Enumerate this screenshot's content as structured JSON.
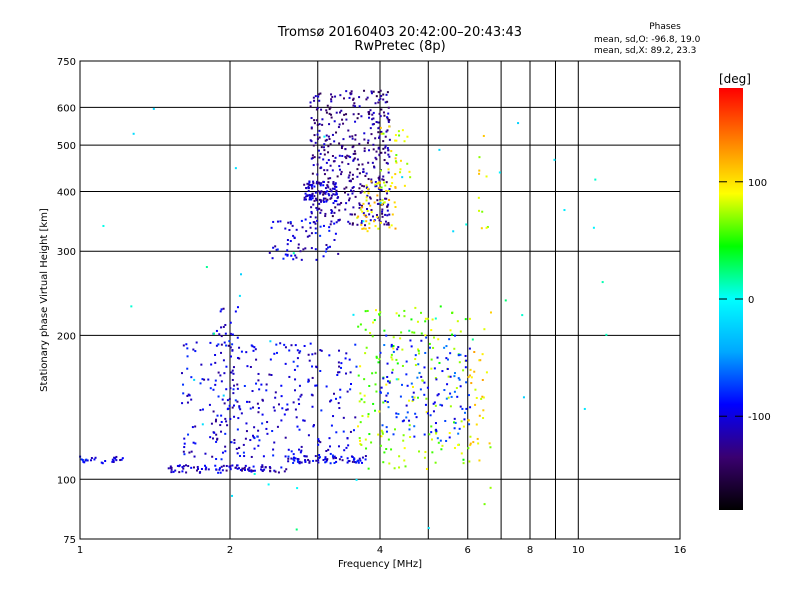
{
  "chart_data": {
    "type": "scatter",
    "title": "Tromsø 20160403 20:42:00–20:43:43",
    "subtitle": "RwPretec (8p)",
    "stats": {
      "header": "Phases",
      "line1": "mean, sd,O:  -96.8, 19.0",
      "line2": "mean, sd,X:  89.2, 23.3"
    },
    "xlabel": "Frequency [MHz]",
    "ylabel": "Stationary phase Virtual Height [km]",
    "xscale": "log",
    "yscale": "log",
    "xlim": [
      1,
      16
    ],
    "ylim": [
      75,
      750
    ],
    "xticks": [
      1,
      2,
      4,
      6,
      8,
      10,
      16
    ],
    "yticks": [
      75,
      100,
      200,
      300,
      400,
      500,
      600,
      750
    ],
    "grid": true,
    "colorbar": {
      "label": "[deg]",
      "range": [
        -180,
        180
      ],
      "ticks": [
        -100,
        0,
        100
      ],
      "colormap": [
        "#000000",
        "#3a0070",
        "#0000ff",
        "#00a8ff",
        "#00ffff",
        "#00ff00",
        "#ffff00",
        "#ff8000",
        "#ff0000"
      ]
    },
    "clusters": [
      {
        "x": [
          0.96,
          1.22
        ],
        "y": [
          108,
          112
        ],
        "phase": -100,
        "n": 30
      },
      {
        "x": [
          1.5,
          2.6
        ],
        "y": [
          103,
          107
        ],
        "phase": -110,
        "n": 90
      },
      {
        "x": [
          2.6,
          3.8
        ],
        "y": [
          108,
          112
        ],
        "phase": -100,
        "n": 70
      },
      {
        "x": [
          1.6,
          3.6
        ],
        "y": [
          110,
          195
        ],
        "phase": -100,
        "n": 280
      },
      {
        "x": [
          1.85,
          2.1
        ],
        "y": [
          110,
          230
        ],
        "phase": -105,
        "n": 70
      },
      {
        "x": [
          2.9,
          4.2
        ],
        "y": [
          340,
          650
        ],
        "phase": -125,
        "n": 420
      },
      {
        "x": [
          2.8,
          3.3
        ],
        "y": [
          380,
          420
        ],
        "phase": -110,
        "n": 90
      },
      {
        "x": [
          2.4,
          3.3
        ],
        "y": [
          285,
          350
        ],
        "phase": -100,
        "n": 70
      },
      {
        "x": [
          3.6,
          4.3
        ],
        "y": [
          330,
          420
        ],
        "phase": 100,
        "n": 60
      },
      {
        "x": [
          4.0,
          4.6
        ],
        "y": [
          400,
          560
        ],
        "phase": 85,
        "n": 30
      },
      {
        "x": [
          3.6,
          6.1
        ],
        "y": [
          105,
          230
        ],
        "phase": 70,
        "n": 180
      },
      {
        "x": [
          4.0,
          6.1
        ],
        "y": [
          120,
          200
        ],
        "phase": -80,
        "n": 130
      },
      {
        "x": [
          6.0,
          6.5
        ],
        "y": [
          115,
          190
        ],
        "phase": 100,
        "n": 25
      },
      {
        "x": [
          6.3,
          6.7
        ],
        "y": [
          85,
          560
        ],
        "phase": 90,
        "n": 22
      },
      {
        "x": [
          1.0,
          12.0
        ],
        "y": [
          78,
          600
        ],
        "phase": 0,
        "n": 45
      }
    ]
  }
}
